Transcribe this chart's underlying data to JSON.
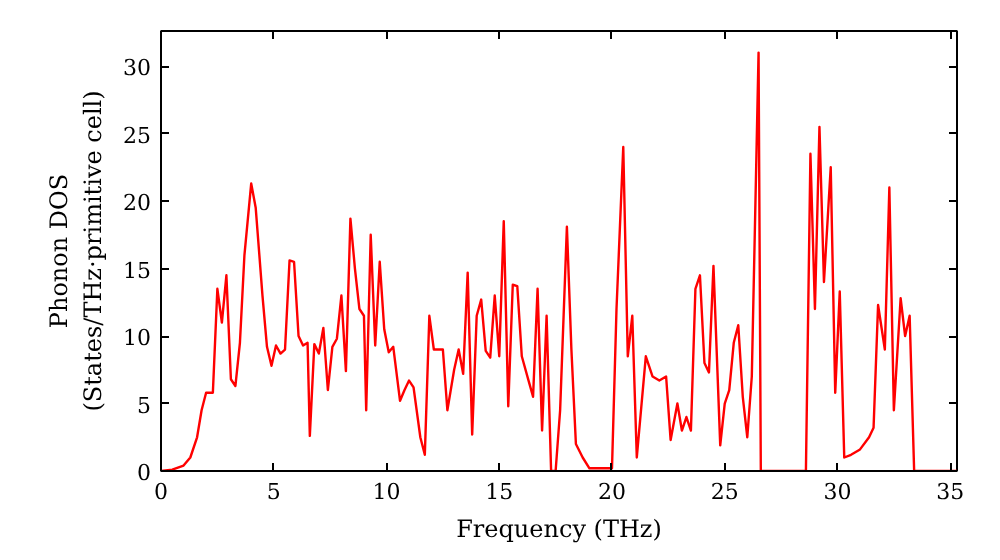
{
  "chart_data": {
    "type": "line",
    "xlabel": "Frequency (THz)",
    "ylabel": "Phonon DOS\n(States/THz·primitive cell)",
    "xlim": [
      0,
      35.3
    ],
    "ylim": [
      0,
      32.6
    ],
    "xticks": [
      0,
      5,
      10,
      15,
      20,
      25,
      30,
      35
    ],
    "yticks": [
      0,
      5,
      10,
      15,
      20,
      25,
      30
    ],
    "grid": false,
    "series": [
      {
        "color": "#ff0000",
        "x": [
          0,
          0.5,
          1,
          1.3,
          1.6,
          1.8,
          2.0,
          2.3,
          2.5,
          2.7,
          2.9,
          3.1,
          3.3,
          3.5,
          3.7,
          4.0,
          4.2,
          4.5,
          4.7,
          4.9,
          5.1,
          5.3,
          5.5,
          5.7,
          5.9,
          6.1,
          6.3,
          6.5,
          6.6,
          6.8,
          7.0,
          7.2,
          7.4,
          7.6,
          7.8,
          8.0,
          8.2,
          8.4,
          8.6,
          8.8,
          9.0,
          9.1,
          9.3,
          9.5,
          9.7,
          9.9,
          10.1,
          10.3,
          10.6,
          10.8,
          11.0,
          11.2,
          11.5,
          11.7,
          11.9,
          12.1,
          12.5,
          12.7,
          13.0,
          13.2,
          13.4,
          13.6,
          13.8,
          14.0,
          14.2,
          14.4,
          14.6,
          14.8,
          15.0,
          15.2,
          15.4,
          15.6,
          15.8,
          16.0,
          16.3,
          16.5,
          16.7,
          16.9,
          17.1,
          17.3,
          17.5,
          17.7,
          18.0,
          18.2,
          18.4,
          18.7,
          19.0,
          20.0,
          20.2,
          20.5,
          20.7,
          20.9,
          21.1,
          21.5,
          21.8,
          22.1,
          22.4,
          22.6,
          22.9,
          23.1,
          23.3,
          23.5,
          23.7,
          23.9,
          24.1,
          24.3,
          24.5,
          24.8,
          25.0,
          25.2,
          25.4,
          25.6,
          25.8,
          26.0,
          26.2,
          26.5,
          26.6,
          28.6,
          28.8,
          29.0,
          29.2,
          29.4,
          29.7,
          29.9,
          30.1,
          30.3,
          30.6,
          31.0,
          31.4,
          31.6,
          31.8,
          32.1,
          32.3,
          32.5,
          32.8,
          33.0,
          33.2,
          33.4,
          35.3
        ],
        "values": [
          0,
          0.1,
          0.4,
          1,
          2.5,
          4.5,
          5.8,
          5.8,
          13.5,
          11,
          14.5,
          6.8,
          6.3,
          9.5,
          16,
          21.3,
          19.5,
          13,
          9.2,
          7.8,
          9.3,
          8.7,
          9,
          15.6,
          15.5,
          10,
          9.3,
          9.5,
          2.6,
          9.4,
          8.7,
          10.6,
          6,
          9.2,
          9.8,
          13,
          7.4,
          18.7,
          15,
          12,
          11.5,
          4.5,
          17.5,
          9.3,
          15.5,
          10.5,
          8.8,
          9.2,
          5.2,
          6,
          6.7,
          6.2,
          2.5,
          1.2,
          11.5,
          9,
          9,
          4.5,
          7.5,
          9,
          7.2,
          14.7,
          2.7,
          11.5,
          12.7,
          8.9,
          8.4,
          13,
          8.5,
          18.5,
          4.8,
          13.8,
          13.7,
          8.5,
          6.7,
          5.5,
          13.5,
          3,
          11.5,
          0,
          0,
          4.5,
          18.1,
          9,
          2,
          1,
          0.2,
          0.2,
          12,
          24,
          8.5,
          11.5,
          1,
          8.5,
          7,
          6.7,
          7,
          2.3,
          5,
          3,
          4,
          3,
          13.5,
          14.5,
          8,
          7.3,
          15.2,
          1.9,
          5,
          6,
          9.5,
          10.8,
          5.5,
          2.5,
          7,
          31,
          0,
          0,
          23.5,
          12,
          25.5,
          14,
          22.5,
          5.8,
          13.3,
          1,
          1.2,
          1.6,
          2.5,
          3.2,
          12.3,
          9,
          21,
          4.5,
          12.8,
          10,
          11.5,
          0,
          0
        ]
      }
    ]
  }
}
